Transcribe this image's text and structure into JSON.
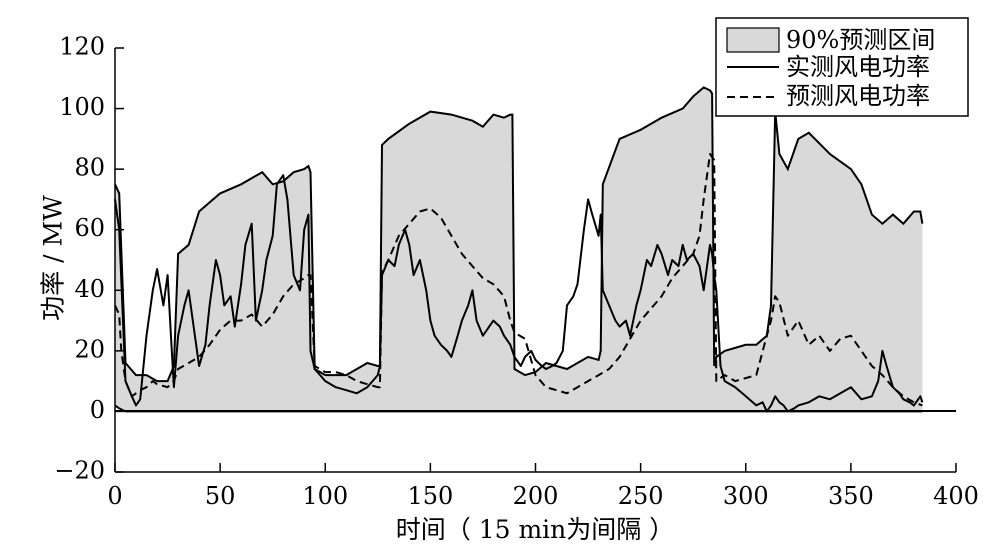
{
  "chart_data": {
    "type": "line",
    "title": "",
    "xlabel": "时间（ 15 min为间隔 ）",
    "ylabel": "功率 / MW",
    "xlim": [
      0,
      400
    ],
    "ylim": [
      -20,
      120
    ],
    "x_ticks": [
      0,
      50,
      100,
      150,
      200,
      250,
      300,
      350,
      400
    ],
    "x_tick_labels": [
      "0",
      "50",
      "100",
      "150",
      "200",
      "250",
      "300",
      "350",
      "400"
    ],
    "y_ticks": [
      -20,
      0,
      20,
      40,
      60,
      80,
      100,
      120
    ],
    "y_tick_labels": [
      "−20",
      "0",
      "20",
      "40",
      "60",
      "80",
      "100",
      "120"
    ],
    "grid": false,
    "legend_position": "top-right",
    "legend": [
      {
        "key": "interval",
        "label": "90%预测区间",
        "kind": "patch",
        "color": "#d9d9d9"
      },
      {
        "key": "actual",
        "label": "实测风电功率",
        "kind": "solid-line",
        "color": "#000000"
      },
      {
        "key": "forecast",
        "label": "预测风电功率",
        "kind": "dashed-line",
        "color": "#000000"
      }
    ],
    "interval_upper": {
      "name": "90%预测区间",
      "x": [
        0,
        2,
        5,
        10,
        15,
        20,
        25,
        28,
        30,
        35,
        40,
        50,
        60,
        70,
        75,
        80,
        85,
        90,
        92,
        93,
        95,
        100,
        110,
        120,
        125,
        126,
        127,
        130,
        140,
        150,
        160,
        170,
        175,
        180,
        185,
        188,
        189,
        190,
        195,
        200,
        205,
        210,
        215,
        220,
        225,
        230,
        231,
        232,
        240,
        250,
        260,
        270,
        275,
        280,
        283,
        284,
        285,
        286,
        290,
        300,
        305,
        310,
        312,
        314,
        316,
        320,
        325,
        330,
        340,
        350,
        355,
        360,
        365,
        370,
        375,
        380,
        383,
        384
      ],
      "y": [
        75,
        72,
        16,
        12,
        12,
        10,
        10,
        15,
        52,
        55,
        66,
        72,
        75,
        79,
        75,
        76,
        79,
        80,
        81,
        79,
        14,
        12,
        12,
        16,
        15,
        15,
        88,
        90,
        95,
        99,
        98,
        96,
        94,
        98,
        97,
        98,
        98,
        14,
        12,
        13,
        16,
        15,
        14,
        16,
        18,
        17,
        20,
        75,
        90,
        93,
        97,
        100,
        104,
        107,
        106,
        105,
        15,
        18,
        20,
        22,
        22,
        25,
        35,
        99,
        85,
        80,
        90,
        92,
        85,
        80,
        75,
        65,
        62,
        65,
        62,
        66,
        66,
        62
      ]
    },
    "interval_lower": {
      "name": "90%预测区间",
      "x": [
        0,
        2,
        5,
        10,
        15,
        20,
        25,
        28,
        30,
        35,
        40,
        45,
        50,
        60,
        70,
        80,
        85,
        90,
        92,
        93,
        95,
        100,
        110,
        120,
        125,
        126,
        127,
        130,
        140,
        150,
        160,
        170,
        175,
        180,
        185,
        188,
        189,
        190,
        195,
        200,
        205,
        210,
        215,
        220,
        225,
        230,
        231,
        232,
        240,
        250,
        260,
        270,
        275,
        280,
        283,
        284,
        285,
        286,
        290,
        300,
        305,
        310,
        312,
        314,
        316,
        320,
        330,
        340,
        350,
        360,
        370,
        380,
        383,
        384
      ],
      "y": [
        2,
        1,
        0,
        0,
        0,
        0,
        0,
        0,
        0,
        0,
        0,
        0,
        0,
        0,
        0,
        0,
        0,
        0,
        0,
        0,
        0,
        0,
        0,
        0,
        0,
        0,
        0,
        0,
        0,
        0,
        0,
        0,
        0,
        0,
        0,
        0,
        0,
        0,
        0,
        0,
        0,
        0,
        0,
        0,
        0,
        0,
        0,
        0,
        0,
        0,
        0,
        0,
        0,
        0,
        0,
        0,
        0,
        0,
        0,
        0,
        0,
        0,
        0,
        0,
        0,
        0,
        0,
        0,
        0,
        0,
        0,
        0,
        0,
        0
      ]
    },
    "series": [
      {
        "name": "实测风电功率",
        "style": "solid",
        "x": [
          0,
          2,
          5,
          8,
          10,
          12,
          15,
          18,
          20,
          23,
          25,
          27,
          28,
          30,
          33,
          35,
          37,
          40,
          43,
          45,
          48,
          50,
          52,
          55,
          57,
          60,
          62,
          65,
          67,
          70,
          72,
          75,
          77,
          80,
          82,
          85,
          88,
          90,
          92,
          93,
          95,
          100,
          105,
          110,
          115,
          120,
          125,
          126,
          127,
          130,
          133,
          135,
          138,
          140,
          142,
          145,
          148,
          150,
          152,
          155,
          158,
          160,
          163,
          165,
          168,
          170,
          172,
          175,
          178,
          180,
          183,
          185,
          188,
          189,
          190,
          193,
          195,
          198,
          200,
          203,
          205,
          208,
          210,
          213,
          215,
          218,
          220,
          223,
          225,
          227,
          230,
          231,
          232,
          235,
          238,
          240,
          243,
          245,
          248,
          250,
          253,
          255,
          258,
          260,
          263,
          265,
          268,
          270,
          272,
          275,
          278,
          280,
          282,
          283,
          284,
          285,
          286,
          288,
          290,
          295,
          300,
          305,
          308,
          310,
          312,
          314,
          316,
          318,
          320,
          323,
          325,
          330,
          335,
          340,
          345,
          350,
          355,
          360,
          363,
          365,
          367,
          370,
          373,
          375,
          378,
          380,
          383,
          384
        ],
        "y": [
          70,
          60,
          10,
          5,
          2,
          4,
          25,
          40,
          47,
          35,
          45,
          20,
          8,
          25,
          35,
          40,
          30,
          15,
          22,
          35,
          50,
          45,
          35,
          38,
          28,
          42,
          55,
          62,
          30,
          40,
          50,
          58,
          75,
          78,
          70,
          45,
          40,
          60,
          65,
          20,
          14,
          10,
          8,
          7,
          6,
          8,
          12,
          15,
          45,
          50,
          48,
          55,
          60,
          55,
          45,
          50,
          40,
          30,
          25,
          22,
          20,
          18,
          25,
          30,
          35,
          40,
          30,
          25,
          28,
          30,
          28,
          25,
          22,
          20,
          18,
          15,
          18,
          20,
          17,
          15,
          14,
          15,
          16,
          20,
          35,
          38,
          42,
          60,
          70,
          65,
          58,
          65,
          40,
          35,
          30,
          28,
          30,
          25,
          35,
          40,
          50,
          48,
          55,
          52,
          45,
          50,
          48,
          55,
          50,
          52,
          48,
          40,
          50,
          55,
          52,
          45,
          40,
          15,
          10,
          8,
          5,
          2,
          3,
          0,
          2,
          5,
          3,
          2,
          0,
          1,
          2,
          3,
          5,
          4,
          6,
          8,
          4,
          5,
          10,
          20,
          15,
          8,
          6,
          4,
          3,
          2,
          5,
          3
        ]
      },
      {
        "name": "预测风电功率",
        "style": "dashed",
        "x": [
          0,
          2,
          3,
          5,
          8,
          10,
          12,
          15,
          18,
          20,
          25,
          28,
          30,
          35,
          40,
          45,
          50,
          55,
          60,
          65,
          70,
          75,
          80,
          85,
          90,
          92,
          93,
          95,
          100,
          105,
          110,
          115,
          120,
          125,
          126,
          127,
          130,
          135,
          140,
          145,
          150,
          155,
          160,
          165,
          170,
          175,
          180,
          185,
          188,
          190,
          195,
          200,
          205,
          210,
          215,
          220,
          225,
          230,
          235,
          240,
          245,
          250,
          255,
          260,
          265,
          270,
          275,
          278,
          280,
          283,
          284,
          285,
          286,
          290,
          295,
          300,
          305,
          310,
          312,
          314,
          316,
          320,
          325,
          330,
          335,
          340,
          345,
          350,
          355,
          360,
          365,
          370,
          375,
          380,
          384
        ],
        "y": [
          35,
          32,
          20,
          10,
          5,
          6,
          7,
          8,
          10,
          9,
          8,
          10,
          14,
          16,
          18,
          22,
          27,
          30,
          30,
          32,
          28,
          32,
          38,
          42,
          44,
          45,
          45,
          15,
          13,
          13,
          12,
          10,
          9,
          8,
          8,
          46,
          50,
          58,
          62,
          66,
          67,
          64,
          58,
          52,
          48,
          44,
          42,
          38,
          30,
          26,
          24,
          12,
          8,
          7,
          6,
          8,
          10,
          12,
          14,
          18,
          24,
          30,
          34,
          38,
          44,
          48,
          52,
          58,
          70,
          85,
          84,
          83,
          10,
          12,
          10,
          11,
          12,
          25,
          30,
          38,
          36,
          25,
          30,
          22,
          25,
          20,
          24,
          25,
          20,
          15,
          12,
          8,
          5,
          3,
          2
        ]
      }
    ]
  }
}
